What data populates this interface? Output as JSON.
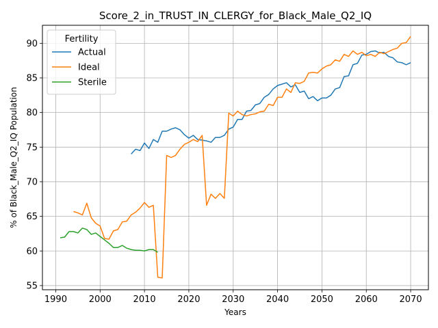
{
  "chart_data": {
    "type": "line",
    "title": "Score_2_in_TRUST_IN_CLERGY_for_Black_Male_Q2_IQ",
    "xlabel": "Years",
    "ylabel": "% of Black_Male_Q2_IQ Population",
    "xlim": [
      1987,
      2074
    ],
    "ylim": [
      54.4,
      92.6
    ],
    "xticks": [
      1990,
      2000,
      2010,
      2020,
      2030,
      2040,
      2050,
      2060,
      2070
    ],
    "yticks": [
      55,
      60,
      65,
      70,
      75,
      80,
      85,
      90
    ],
    "grid": true,
    "legend": {
      "title": "Fertility",
      "position": "top-left"
    },
    "series": [
      {
        "name": "Actual",
        "color": "#1f77b4",
        "points": [
          [
            2007,
            74.0
          ],
          [
            2008,
            74.7
          ],
          [
            2009,
            74.5
          ],
          [
            2010,
            75.6
          ],
          [
            2011,
            74.8
          ],
          [
            2012,
            76.1
          ],
          [
            2013,
            75.7
          ],
          [
            2014,
            77.3
          ],
          [
            2015,
            77.3
          ],
          [
            2016,
            77.6
          ],
          [
            2017,
            77.8
          ],
          [
            2018,
            77.5
          ],
          [
            2019,
            76.8
          ],
          [
            2020,
            76.3
          ],
          [
            2021,
            76.7
          ],
          [
            2022,
            76.1
          ],
          [
            2023,
            76.0
          ],
          [
            2024,
            75.9
          ],
          [
            2025,
            75.7
          ],
          [
            2026,
            76.4
          ],
          [
            2027,
            76.4
          ],
          [
            2028,
            76.7
          ],
          [
            2029,
            77.6
          ],
          [
            2030,
            77.9
          ],
          [
            2031,
            79.0
          ],
          [
            2032,
            79.0
          ],
          [
            2033,
            80.2
          ],
          [
            2034,
            80.3
          ],
          [
            2035,
            81.1
          ],
          [
            2036,
            81.3
          ],
          [
            2037,
            82.2
          ],
          [
            2038,
            82.6
          ],
          [
            2039,
            83.4
          ],
          [
            2040,
            83.9
          ],
          [
            2041,
            84.1
          ],
          [
            2042,
            84.3
          ],
          [
            2043,
            83.7
          ],
          [
            2044,
            84.0
          ],
          [
            2045,
            82.9
          ],
          [
            2046,
            83.1
          ],
          [
            2047,
            82.0
          ],
          [
            2048,
            82.3
          ],
          [
            2049,
            81.7
          ],
          [
            2050,
            82.1
          ],
          [
            2051,
            82.1
          ],
          [
            2052,
            82.5
          ],
          [
            2053,
            83.4
          ],
          [
            2054,
            83.6
          ],
          [
            2055,
            85.2
          ],
          [
            2056,
            85.3
          ],
          [
            2057,
            86.9
          ],
          [
            2058,
            87.1
          ],
          [
            2059,
            88.3
          ],
          [
            2060,
            88.4
          ],
          [
            2061,
            88.8
          ],
          [
            2062,
            88.9
          ],
          [
            2063,
            88.6
          ],
          [
            2064,
            88.7
          ],
          [
            2065,
            88.1
          ],
          [
            2066,
            87.9
          ],
          [
            2067,
            87.3
          ],
          [
            2068,
            87.2
          ],
          [
            2069,
            86.9
          ],
          [
            2070,
            87.2
          ]
        ]
      },
      {
        "name": "Ideal",
        "color": "#ff7f0e",
        "points": [
          [
            1994,
            65.7
          ],
          [
            1995,
            65.5
          ],
          [
            1996,
            65.2
          ],
          [
            1997,
            66.9
          ],
          [
            1998,
            64.8
          ],
          [
            1999,
            64.0
          ],
          [
            2000,
            63.6
          ],
          [
            2001,
            61.8
          ],
          [
            2002,
            61.7
          ],
          [
            2003,
            62.9
          ],
          [
            2004,
            63.1
          ],
          [
            2005,
            64.2
          ],
          [
            2006,
            64.3
          ],
          [
            2007,
            65.2
          ],
          [
            2008,
            65.6
          ],
          [
            2009,
            66.2
          ],
          [
            2010,
            67.0
          ],
          [
            2011,
            66.3
          ],
          [
            2012,
            66.6
          ],
          [
            2013,
            56.2
          ],
          [
            2014,
            56.1
          ],
          [
            2015,
            73.8
          ],
          [
            2016,
            73.5
          ],
          [
            2017,
            73.8
          ],
          [
            2018,
            74.7
          ],
          [
            2019,
            75.4
          ],
          [
            2020,
            75.7
          ],
          [
            2021,
            76.1
          ],
          [
            2022,
            75.8
          ],
          [
            2023,
            76.7
          ],
          [
            2024,
            66.6
          ],
          [
            2025,
            68.2
          ],
          [
            2026,
            67.6
          ],
          [
            2027,
            68.3
          ],
          [
            2028,
            67.6
          ],
          [
            2029,
            79.9
          ],
          [
            2030,
            79.5
          ],
          [
            2031,
            80.2
          ],
          [
            2032,
            79.7
          ],
          [
            2033,
            79.5
          ],
          [
            2034,
            79.7
          ],
          [
            2035,
            79.8
          ],
          [
            2036,
            80.1
          ],
          [
            2037,
            80.2
          ],
          [
            2038,
            81.2
          ],
          [
            2039,
            81.0
          ],
          [
            2040,
            82.2
          ],
          [
            2041,
            82.2
          ],
          [
            2042,
            83.4
          ],
          [
            2043,
            82.9
          ],
          [
            2044,
            84.3
          ],
          [
            2045,
            84.2
          ],
          [
            2046,
            84.5
          ],
          [
            2047,
            85.7
          ],
          [
            2048,
            85.8
          ],
          [
            2049,
            85.7
          ],
          [
            2050,
            86.3
          ],
          [
            2051,
            86.7
          ],
          [
            2052,
            86.9
          ],
          [
            2053,
            87.6
          ],
          [
            2054,
            87.4
          ],
          [
            2055,
            88.4
          ],
          [
            2056,
            88.1
          ],
          [
            2057,
            88.9
          ],
          [
            2058,
            88.4
          ],
          [
            2059,
            88.7
          ],
          [
            2060,
            88.2
          ],
          [
            2061,
            88.4
          ],
          [
            2062,
            88.1
          ],
          [
            2063,
            88.7
          ],
          [
            2064,
            88.5
          ],
          [
            2065,
            88.8
          ],
          [
            2066,
            89.1
          ],
          [
            2067,
            89.3
          ],
          [
            2068,
            90.0
          ],
          [
            2069,
            90.1
          ],
          [
            2070,
            91.0
          ]
        ]
      },
      {
        "name": "Sterile",
        "color": "#2ca02c",
        "points": [
          [
            1991,
            61.9
          ],
          [
            1992,
            62.0
          ],
          [
            1993,
            62.8
          ],
          [
            1994,
            62.8
          ],
          [
            1995,
            62.6
          ],
          [
            1996,
            63.3
          ],
          [
            1997,
            63.1
          ],
          [
            1998,
            62.4
          ],
          [
            1999,
            62.6
          ],
          [
            2000,
            62.1
          ],
          [
            2001,
            61.6
          ],
          [
            2002,
            61.1
          ],
          [
            2003,
            60.5
          ],
          [
            2004,
            60.5
          ],
          [
            2005,
            60.8
          ],
          [
            2006,
            60.4
          ],
          [
            2007,
            60.2
          ],
          [
            2008,
            60.1
          ],
          [
            2009,
            60.1
          ],
          [
            2010,
            60.0
          ],
          [
            2011,
            60.2
          ],
          [
            2012,
            60.2
          ],
          [
            2013,
            59.8
          ]
        ]
      }
    ]
  }
}
